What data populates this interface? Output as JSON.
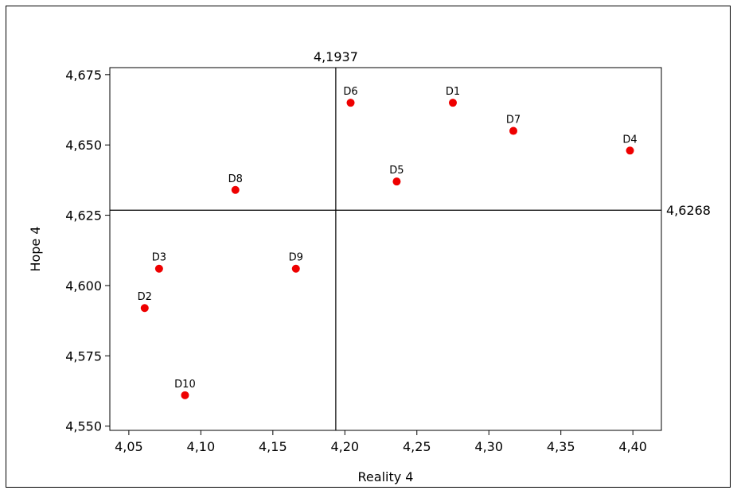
{
  "chart_data": {
    "type": "scatter",
    "xlabel": "Reality 4",
    "ylabel": "Hope 4",
    "xlim": [
      4.0368,
      4.4198
    ],
    "ylim": [
      4.5485,
      4.6775
    ],
    "x_ticks": [
      4.05,
      4.1,
      4.15,
      4.2,
      4.25,
      4.3,
      4.35,
      4.4
    ],
    "x_tick_labels": [
      "4,05",
      "4,10",
      "4,15",
      "4,20",
      "4,25",
      "4,30",
      "4,35",
      "4,40"
    ],
    "y_ticks": [
      4.55,
      4.575,
      4.6,
      4.625,
      4.65,
      4.675
    ],
    "y_tick_labels": [
      "4,550",
      "4,575",
      "4,600",
      "4,625",
      "4,650",
      "4,675"
    ],
    "reference_lines": {
      "vertical": {
        "value": 4.1937,
        "label": "4,1937"
      },
      "horizontal": {
        "value": 4.6268,
        "label": "4,6268"
      }
    },
    "points": [
      {
        "label": "D1",
        "x": 4.275,
        "y": 4.665
      },
      {
        "label": "D2",
        "x": 4.061,
        "y": 4.592
      },
      {
        "label": "D3",
        "x": 4.071,
        "y": 4.606
      },
      {
        "label": "D4",
        "x": 4.398,
        "y": 4.648
      },
      {
        "label": "D5",
        "x": 4.236,
        "y": 4.637
      },
      {
        "label": "D6",
        "x": 4.204,
        "y": 4.665
      },
      {
        "label": "D7",
        "x": 4.317,
        "y": 4.655
      },
      {
        "label": "D8",
        "x": 4.124,
        "y": 4.634
      },
      {
        "label": "D9",
        "x": 4.166,
        "y": 4.606
      },
      {
        "label": "D10",
        "x": 4.089,
        "y": 4.561
      }
    ],
    "grid": false,
    "colors": {
      "point": "#ee0000",
      "axis": "#000000"
    }
  }
}
